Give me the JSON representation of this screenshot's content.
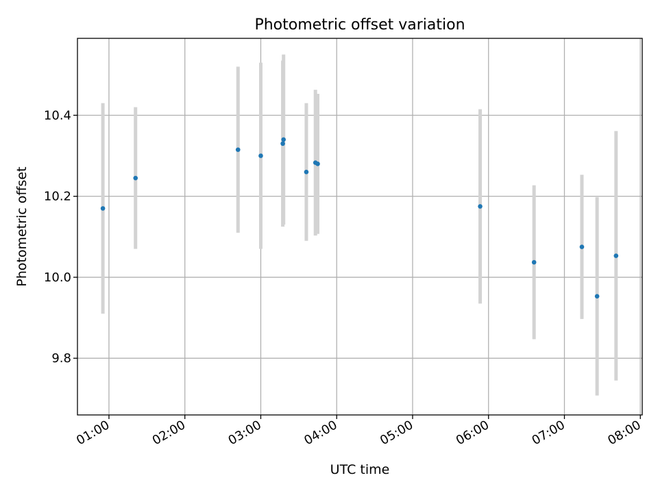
{
  "chart_data": {
    "type": "scatter",
    "title": "Photometric offset variation",
    "xlabel": "UTC time",
    "ylabel": "Photometric offset",
    "x_unit": "hours UTC",
    "xlim": [
      0.585,
      8.025
    ],
    "ylim": [
      9.66,
      10.59
    ],
    "x_ticks": [
      {
        "value": 1,
        "label": "01:00"
      },
      {
        "value": 2,
        "label": "02:00"
      },
      {
        "value": 3,
        "label": "03:00"
      },
      {
        "value": 4,
        "label": "04:00"
      },
      {
        "value": 5,
        "label": "05:00"
      },
      {
        "value": 6,
        "label": "06:00"
      },
      {
        "value": 7,
        "label": "07:00"
      },
      {
        "value": 8,
        "label": "08:00"
      }
    ],
    "y_ticks": [
      {
        "value": 9.8,
        "label": "9.8"
      },
      {
        "value": 10.0,
        "label": "10.0"
      },
      {
        "value": 10.2,
        "label": "10.2"
      },
      {
        "value": 10.4,
        "label": "10.4"
      }
    ],
    "grid": true,
    "colors": {
      "point": "#1f77b4",
      "errorbar": "#d3d3d3",
      "grid": "#b0b0b0"
    },
    "series": [
      {
        "name": "offset",
        "points": [
          {
            "x": 0.92,
            "y": 10.17,
            "err": 0.26
          },
          {
            "x": 1.35,
            "y": 10.245,
            "err": 0.175
          },
          {
            "x": 2.7,
            "y": 10.315,
            "err": 0.205
          },
          {
            "x": 3.0,
            "y": 10.3,
            "err": 0.23
          },
          {
            "x": 3.29,
            "y": 10.33,
            "err": 0.205
          },
          {
            "x": 3.3,
            "y": 10.34,
            "err": 0.21
          },
          {
            "x": 3.6,
            "y": 10.26,
            "err": 0.17
          },
          {
            "x": 3.72,
            "y": 10.283,
            "err": 0.18
          },
          {
            "x": 3.75,
            "y": 10.28,
            "err": 0.173
          },
          {
            "x": 5.89,
            "y": 10.175,
            "err": 0.24
          },
          {
            "x": 6.6,
            "y": 10.037,
            "err": 0.19
          },
          {
            "x": 7.23,
            "y": 10.075,
            "err": 0.178
          },
          {
            "x": 7.43,
            "y": 9.953,
            "err": 0.245
          },
          {
            "x": 7.68,
            "y": 10.053,
            "err": 0.308
          }
        ]
      }
    ]
  }
}
